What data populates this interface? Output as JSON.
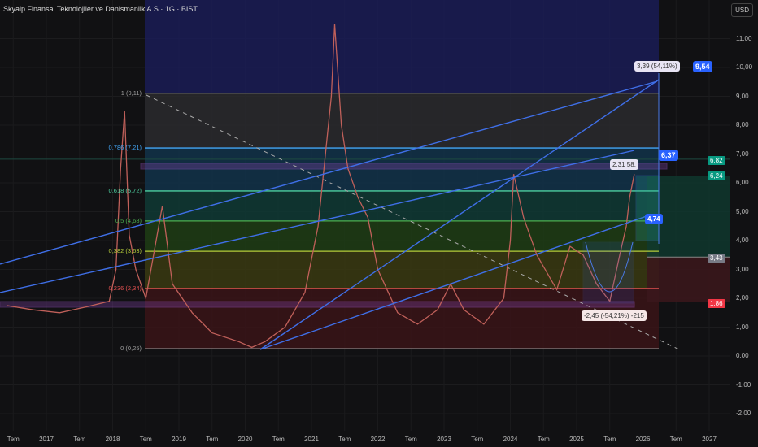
{
  "header": {
    "title": "Skyalp Finansal Teknolojiler ve Danismanlik A.S · 1G · BIST",
    "currency": "USD"
  },
  "price_tags": {
    "a": "6,82",
    "b": "6,24",
    "c": "3,43",
    "d": "1,86"
  },
  "colors": {
    "up": "#26a69a",
    "down": "#ef5350",
    "accent": "#2962ff"
  },
  "annotations": {
    "target_top_info": "3,39 (54,11%)",
    "target_top": "9,54",
    "target_mid_info": "2,31  58,",
    "target_mid": "6,37",
    "level": "4,74",
    "drop_info": "-2,45 (-54,21%) -215"
  },
  "chart_data": {
    "type": "line",
    "ylim": [
      -2.3,
      11.8
    ],
    "yticks": [
      "11,00",
      "10,00",
      "9,00",
      "8,00",
      "7,00",
      "6,00",
      "5,00",
      "4,00",
      "3,00",
      "2,00",
      "1,00",
      "0,00",
      "-1,00",
      "-2,00"
    ],
    "xticks": [
      "Tem",
      "2017",
      "Tem",
      "2018",
      "Tem",
      "2019",
      "Tem",
      "2020",
      "Tem",
      "2021",
      "Tem",
      "2022",
      "Tem",
      "2023",
      "Tem",
      "2024",
      "Tem",
      "2025",
      "Tem",
      "2026",
      "Tem",
      "2027"
    ],
    "fib_levels": [
      {
        "label": "1 (9,11)",
        "value": 9.11,
        "color": "#9e9e9e"
      },
      {
        "label": "0,786 (7,21)",
        "value": 7.21,
        "color": "#42a5f5"
      },
      {
        "label": "0,618 (5,72)",
        "value": 5.72,
        "color": "#4dd0a0"
      },
      {
        "label": "0,5 (4,68)",
        "value": 4.68,
        "color": "#4caf50"
      },
      {
        "label": "0,382 (3,63)",
        "value": 3.63,
        "color": "#b5cc3a"
      },
      {
        "label": "0,236 (2,34)",
        "value": 2.34,
        "color": "#e05050"
      },
      {
        "label": "0 (0,25)",
        "value": 0.25,
        "color": "#9e9e9e"
      }
    ],
    "series": [
      {
        "x": [
          2016.4,
          2016.8,
          2017.2,
          2017.6,
          2017.95,
          2018.05,
          2018.12,
          2018.18,
          2018.25,
          2018.35,
          2018.5,
          2018.75,
          2018.9,
          2019.2,
          2019.5,
          2019.9,
          2020.1,
          2020.3,
          2020.6,
          2020.9,
          2021.1,
          2021.3,
          2021.35,
          2021.45,
          2021.55,
          2021.7,
          2021.85,
          2022.0,
          2022.3,
          2022.6,
          2022.9,
          2023.1,
          2023.3,
          2023.6,
          2023.9,
          2024.0,
          2024.05,
          2024.2,
          2024.4,
          2024.7,
          2024.9,
          2025.1,
          2025.3,
          2025.5,
          2025.65,
          2025.75,
          2025.8,
          2025.87
        ],
        "y": [
          1.75,
          1.6,
          1.5,
          1.7,
          1.9,
          3.0,
          6.5,
          8.5,
          4.2,
          3.0,
          2.0,
          5.2,
          2.5,
          1.5,
          0.8,
          0.5,
          0.3,
          0.5,
          1.0,
          2.2,
          4.5,
          9.0,
          11.5,
          8.0,
          6.5,
          5.5,
          4.8,
          3.0,
          1.5,
          1.1,
          1.6,
          2.5,
          1.6,
          1.1,
          2.0,
          4.0,
          6.3,
          4.8,
          3.5,
          2.3,
          3.8,
          3.5,
          2.5,
          1.9,
          3.5,
          4.5,
          5.5,
          6.3
        ]
      }
    ]
  }
}
